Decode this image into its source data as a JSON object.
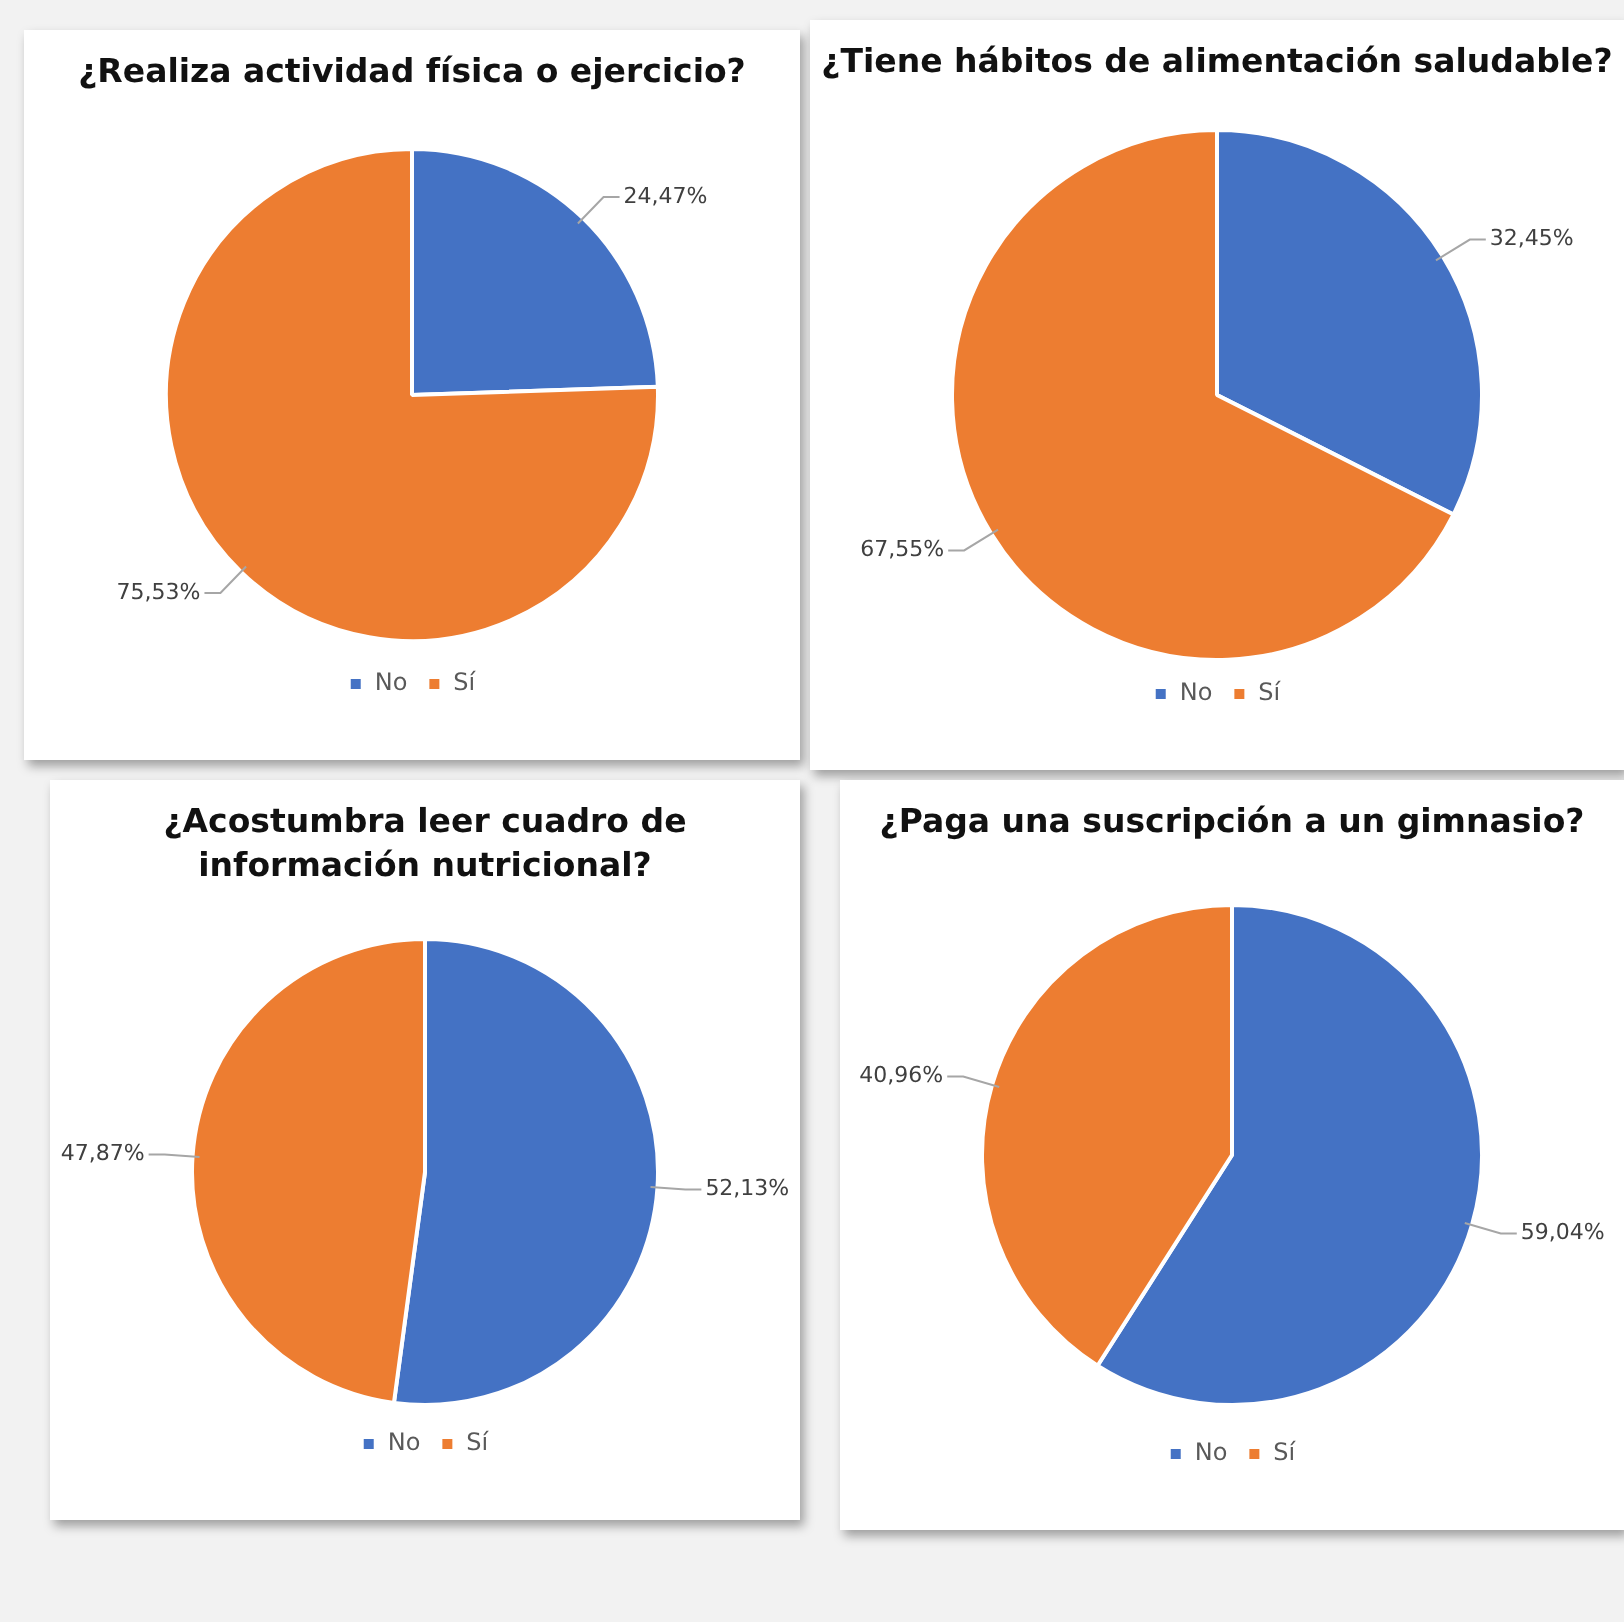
{
  "chart_data": [
    {
      "type": "pie",
      "title": "¿Realiza actividad física o ejercicio?",
      "categories": [
        "No",
        "Sí"
      ],
      "values": [
        24.47,
        75.53
      ],
      "colors": [
        "#4472c4",
        "#ed7d31"
      ],
      "value_labels": [
        "24,47%",
        "75,53%"
      ],
      "legend": "bottom"
    },
    {
      "type": "pie",
      "title": "¿Tiene hábitos de alimentación saludable?",
      "categories": [
        "No",
        "Sí"
      ],
      "values": [
        32.45,
        67.55
      ],
      "colors": [
        "#4472c4",
        "#ed7d31"
      ],
      "value_labels": [
        "32,45%",
        "67,55%"
      ],
      "legend": "bottom"
    },
    {
      "type": "pie",
      "title": "¿Acostumbra leer cuadro de información nutricional?",
      "categories": [
        "No",
        "Sí"
      ],
      "values": [
        52.13,
        47.87
      ],
      "colors": [
        "#4472c4",
        "#ed7d31"
      ],
      "value_labels": [
        "52,13%",
        "47,87%"
      ],
      "legend": "bottom"
    },
    {
      "type": "pie",
      "title": "¿Paga una suscripción a un gimnasio?",
      "categories": [
        "No",
        "Sí"
      ],
      "values": [
        59.04,
        40.96
      ],
      "colors": [
        "#4472c4",
        "#ed7d31"
      ],
      "value_labels": [
        "59,04%",
        "40,96%"
      ],
      "legend": "bottom"
    }
  ]
}
